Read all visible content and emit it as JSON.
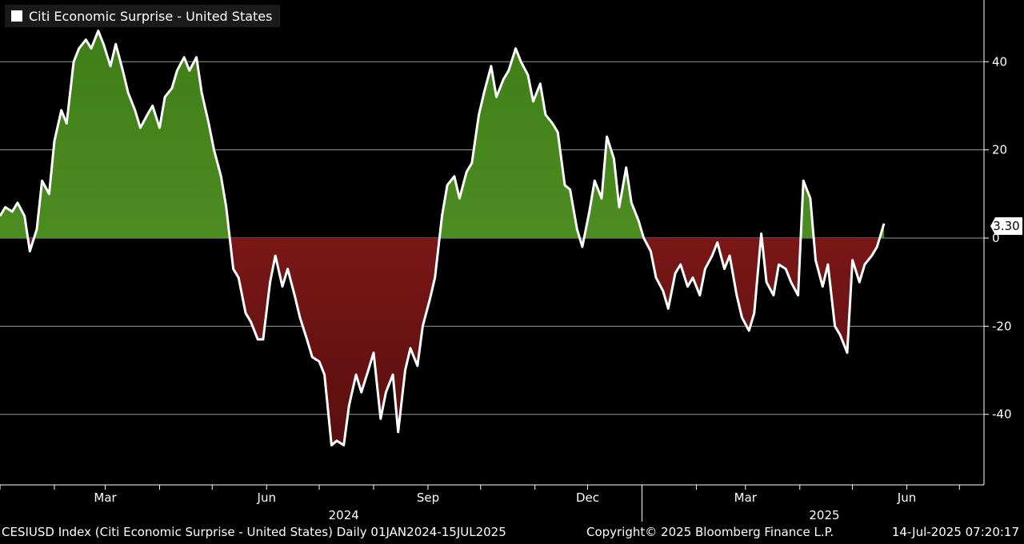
{
  "legend": {
    "label": "Citi Economic Surprise - United States",
    "swatch_color": "#ffffff"
  },
  "last_value_label": "3.30",
  "footer": {
    "left": "CESIUSD Index (Citi Economic Surprise - United States)  Daily 01JAN2024-15JUL2025",
    "middle": "Copyright© 2025 Bloomberg Finance L.P.",
    "right": "14-Jul-2025 07:20:17"
  },
  "colors": {
    "positive_fill": "#4a8a1c",
    "negative_fill": "#8a1a1a",
    "line": "#ffffff",
    "grid": "#9a9a9a",
    "background": "#000000"
  },
  "chart_data": {
    "type": "area",
    "title": "",
    "xlabel": "",
    "ylabel": "",
    "ylim": [
      -56,
      54
    ],
    "y_ticks": [
      40,
      20,
      0,
      -20,
      -40
    ],
    "x_range": [
      "2024-01-01",
      "2025-07-15"
    ],
    "x_ticks": [
      {
        "date": "2024-03-01",
        "label": "Mar"
      },
      {
        "date": "2024-06-01",
        "label": "Jun"
      },
      {
        "date": "2024-09-01",
        "label": "Sep"
      },
      {
        "date": "2024-12-01",
        "label": "Dec"
      },
      {
        "date": "2025-03-01",
        "label": "Mar"
      },
      {
        "date": "2025-06-01",
        "label": "Jun"
      }
    ],
    "year_labels": [
      {
        "date": "2024-07-15",
        "label": "2024"
      },
      {
        "date": "2025-04-15",
        "label": "2025"
      }
    ],
    "grid": true,
    "legend_position": "top-left",
    "series": [
      {
        "name": "Citi Economic Surprise - United States",
        "last_value": 3.3,
        "points": [
          [
            "2024-01-01",
            5
          ],
          [
            "2024-01-04",
            7
          ],
          [
            "2024-01-08",
            6
          ],
          [
            "2024-01-11",
            8
          ],
          [
            "2024-01-15",
            5
          ],
          [
            "2024-01-18",
            -3
          ],
          [
            "2024-01-22",
            2
          ],
          [
            "2024-01-25",
            13
          ],
          [
            "2024-01-29",
            10
          ],
          [
            "2024-02-01",
            22
          ],
          [
            "2024-02-05",
            29
          ],
          [
            "2024-02-08",
            26
          ],
          [
            "2024-02-12",
            40
          ],
          [
            "2024-02-15",
            43
          ],
          [
            "2024-02-19",
            45
          ],
          [
            "2024-02-22",
            43
          ],
          [
            "2024-02-26",
            47
          ],
          [
            "2024-02-29",
            44
          ],
          [
            "2024-03-04",
            39
          ],
          [
            "2024-03-07",
            44
          ],
          [
            "2024-03-11",
            38
          ],
          [
            "2024-03-14",
            33
          ],
          [
            "2024-03-18",
            29
          ],
          [
            "2024-03-21",
            25
          ],
          [
            "2024-03-25",
            28
          ],
          [
            "2024-03-28",
            30
          ],
          [
            "2024-04-01",
            25
          ],
          [
            "2024-04-04",
            32
          ],
          [
            "2024-04-08",
            34
          ],
          [
            "2024-04-11",
            38
          ],
          [
            "2024-04-15",
            41
          ],
          [
            "2024-04-18",
            38
          ],
          [
            "2024-04-22",
            41
          ],
          [
            "2024-04-25",
            33
          ],
          [
            "2024-04-29",
            26
          ],
          [
            "2024-05-02",
            20
          ],
          [
            "2024-05-06",
            14
          ],
          [
            "2024-05-09",
            7
          ],
          [
            "2024-05-13",
            -7
          ],
          [
            "2024-05-16",
            -9
          ],
          [
            "2024-05-20",
            -17
          ],
          [
            "2024-05-23",
            -19
          ],
          [
            "2024-05-27",
            -23
          ],
          [
            "2024-05-30",
            -23
          ],
          [
            "2024-06-03",
            -10
          ],
          [
            "2024-06-06",
            -4
          ],
          [
            "2024-06-10",
            -11
          ],
          [
            "2024-06-13",
            -7
          ],
          [
            "2024-06-17",
            -13
          ],
          [
            "2024-06-20",
            -18
          ],
          [
            "2024-06-24",
            -23
          ],
          [
            "2024-06-27",
            -27
          ],
          [
            "2024-07-01",
            -28
          ],
          [
            "2024-07-04",
            -31
          ],
          [
            "2024-07-08",
            -47
          ],
          [
            "2024-07-11",
            -46
          ],
          [
            "2024-07-15",
            -47
          ],
          [
            "2024-07-18",
            -38
          ],
          [
            "2024-07-22",
            -31
          ],
          [
            "2024-07-25",
            -35
          ],
          [
            "2024-07-29",
            -30
          ],
          [
            "2024-08-01",
            -26
          ],
          [
            "2024-08-05",
            -41
          ],
          [
            "2024-08-08",
            -35
          ],
          [
            "2024-08-12",
            -31
          ],
          [
            "2024-08-15",
            -44
          ],
          [
            "2024-08-19",
            -30
          ],
          [
            "2024-08-22",
            -25
          ],
          [
            "2024-08-26",
            -29
          ],
          [
            "2024-08-29",
            -20
          ],
          [
            "2024-09-02",
            -14
          ],
          [
            "2024-09-05",
            -9
          ],
          [
            "2024-09-09",
            5
          ],
          [
            "2024-09-12",
            12
          ],
          [
            "2024-09-16",
            14
          ],
          [
            "2024-09-19",
            9
          ],
          [
            "2024-09-23",
            15
          ],
          [
            "2024-09-26",
            17
          ],
          [
            "2024-09-30",
            28
          ],
          [
            "2024-10-03",
            33
          ],
          [
            "2024-10-07",
            39
          ],
          [
            "2024-10-10",
            32
          ],
          [
            "2024-10-14",
            36
          ],
          [
            "2024-10-17",
            38
          ],
          [
            "2024-10-21",
            43
          ],
          [
            "2024-10-24",
            40
          ],
          [
            "2024-10-28",
            37
          ],
          [
            "2024-10-31",
            31
          ],
          [
            "2024-11-04",
            35
          ],
          [
            "2024-11-07",
            28
          ],
          [
            "2024-11-11",
            26
          ],
          [
            "2024-11-14",
            24
          ],
          [
            "2024-11-18",
            12
          ],
          [
            "2024-11-21",
            11
          ],
          [
            "2024-11-25",
            2
          ],
          [
            "2024-11-28",
            -2
          ],
          [
            "2024-12-02",
            6
          ],
          [
            "2024-12-05",
            13
          ],
          [
            "2024-12-09",
            9
          ],
          [
            "2024-12-12",
            23
          ],
          [
            "2024-12-16",
            18
          ],
          [
            "2024-12-19",
            7
          ],
          [
            "2024-12-23",
            16
          ],
          [
            "2024-12-26",
            8
          ],
          [
            "2024-12-30",
            4
          ],
          [
            "2025-01-02",
            0
          ],
          [
            "2025-01-06",
            -3
          ],
          [
            "2025-01-09",
            -9
          ],
          [
            "2025-01-13",
            -12
          ],
          [
            "2025-01-16",
            -16
          ],
          [
            "2025-01-20",
            -8
          ],
          [
            "2025-01-23",
            -6
          ],
          [
            "2025-01-27",
            -11
          ],
          [
            "2025-01-30",
            -9
          ],
          [
            "2025-02-03",
            -13
          ],
          [
            "2025-02-06",
            -7
          ],
          [
            "2025-02-10",
            -4
          ],
          [
            "2025-02-13",
            -1
          ],
          [
            "2025-02-17",
            -7
          ],
          [
            "2025-02-20",
            -4
          ],
          [
            "2025-02-24",
            -13
          ],
          [
            "2025-02-27",
            -18
          ],
          [
            "2025-03-03",
            -21
          ],
          [
            "2025-03-06",
            -17
          ],
          [
            "2025-03-10",
            1
          ],
          [
            "2025-03-13",
            -10
          ],
          [
            "2025-03-17",
            -13
          ],
          [
            "2025-03-20",
            -6
          ],
          [
            "2025-03-24",
            -7
          ],
          [
            "2025-03-27",
            -10
          ],
          [
            "2025-03-31",
            -13
          ],
          [
            "2025-04-03",
            13
          ],
          [
            "2025-04-07",
            9
          ],
          [
            "2025-04-10",
            -5
          ],
          [
            "2025-04-14",
            -11
          ],
          [
            "2025-04-17",
            -6
          ],
          [
            "2025-04-21",
            -20
          ],
          [
            "2025-04-24",
            -22
          ],
          [
            "2025-04-28",
            -26
          ],
          [
            "2025-05-01",
            -5
          ],
          [
            "2025-05-05",
            -10
          ],
          [
            "2025-05-08",
            -6
          ],
          [
            "2025-05-12",
            -4
          ],
          [
            "2025-05-15",
            -2
          ],
          [
            "2025-05-19",
            3.3
          ]
        ]
      }
    ]
  }
}
